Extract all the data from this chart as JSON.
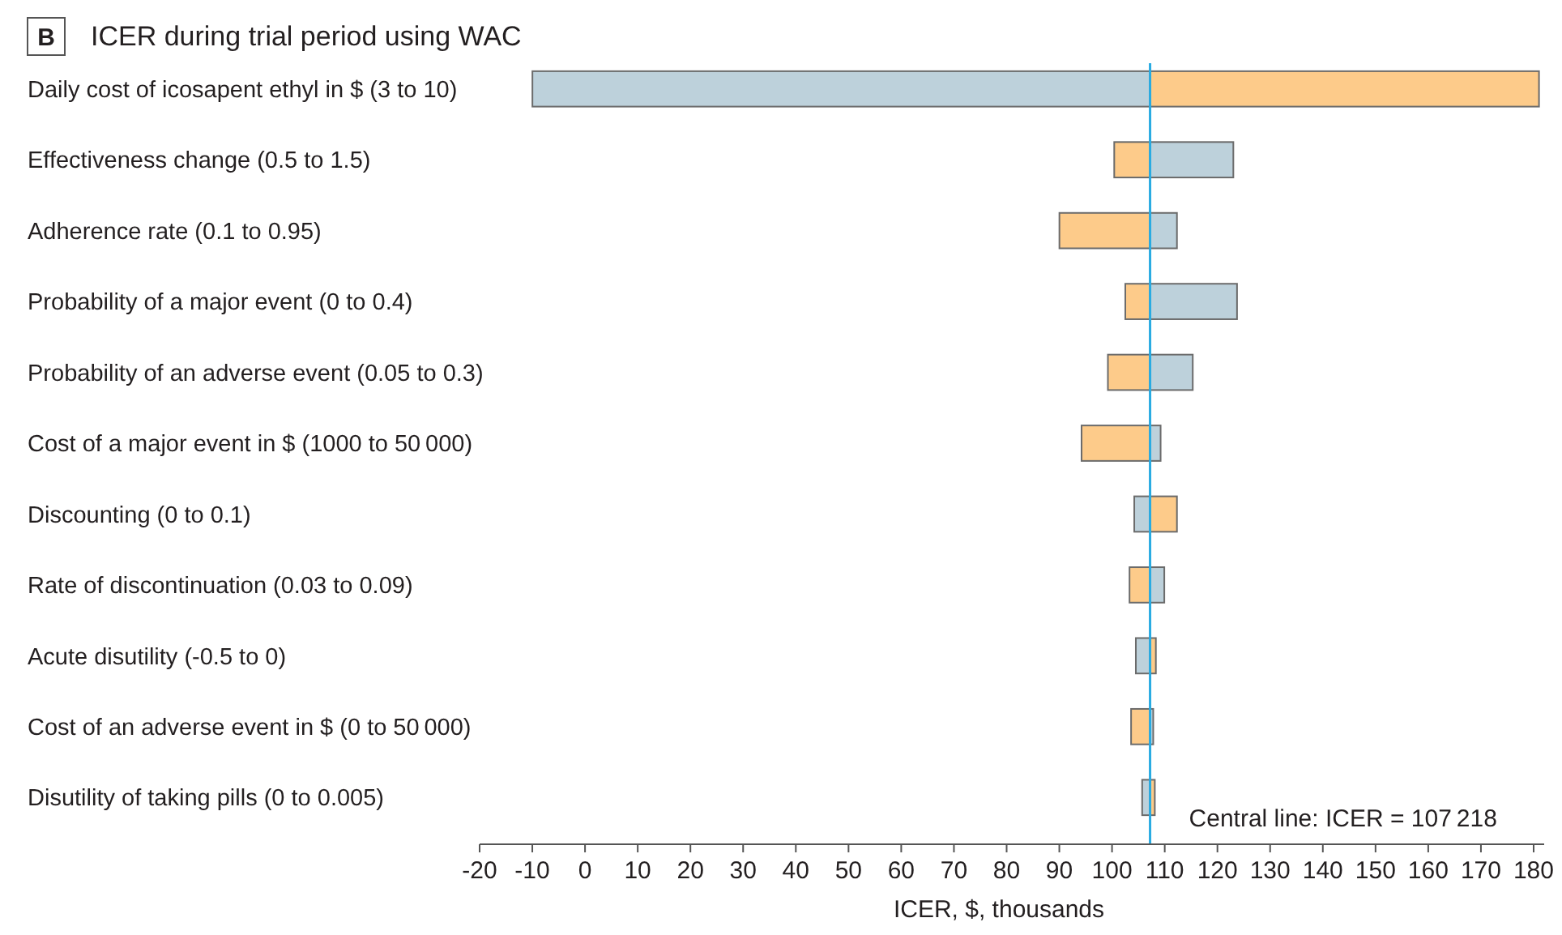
{
  "chart_data": {
    "type": "bar",
    "orientation": "horizontal",
    "title": "ICER during trial period using WAC",
    "annotations": [
      "B"
    ],
    "xlabel": "ICER, $, thousands",
    "categories": [
      "Daily cost of icosapent ethyl in $ (3 to 10)",
      "Effectiveness change (0.5 to 1.5)",
      "Adherence rate (0.1 to 0.95)",
      "Probability of a major event (0 to 0.4)",
      "Probability of an adverse event (0.05 to 0.3)",
      "Cost of a major event in $ (1000 to 50 000)",
      "Discounting (0 to 0.1)",
      "Rate of discontinuation (0.03 to 0.09)",
      "Acute disutility (-0.5 to 0)",
      "Cost of an adverse event in $ (0 to 50 000)",
      "Disutility of taking pills (0 to 0.005)"
    ],
    "series": [
      {
        "color": "#bdd1db",
        "base": [
          107.218,
          107.218,
          107.218,
          107.218,
          107.218,
          107.218,
          107.218,
          107.218,
          107.218,
          107.218,
          107.218
        ],
        "values": [
          -117.2,
          15.8,
          5.1,
          16.5,
          8.1,
          2.0,
          -3.0,
          2.7,
          -2.7,
          0.6,
          -1.5
        ]
      },
      {
        "color": "#fdcb8a",
        "base": [
          107.218,
          107.218,
          107.218,
          107.218,
          107.218,
          107.218,
          107.218,
          107.218,
          107.218,
          107.218,
          107.218
        ],
        "values": [
          73.8,
          -6.8,
          -17.2,
          -4.7,
          -8.0,
          -13.0,
          5.1,
          -3.9,
          1.1,
          -3.6,
          0.9
        ]
      }
    ],
    "xlim": [
      -20,
      182
    ],
    "xticks": [
      -20,
      -10,
      0,
      10,
      20,
      30,
      40,
      50,
      60,
      70,
      80,
      90,
      100,
      110,
      120,
      130,
      140,
      150,
      160,
      170,
      180
    ],
    "ref_lines": [
      {
        "axis": "x",
        "value": 107.218,
        "label": "Central line: ICER = 107 218",
        "color": "#29abe2"
      }
    ]
  }
}
